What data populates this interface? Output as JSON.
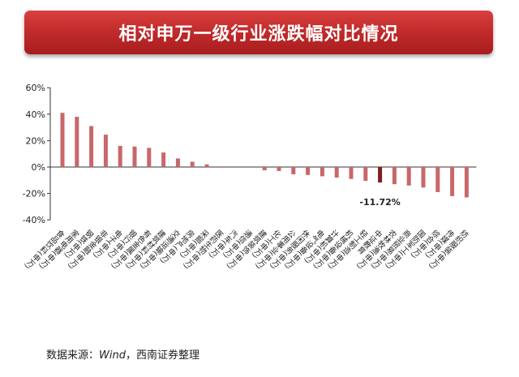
{
  "banner": {
    "title": "相对申万一级行业涨跌幅对比情况"
  },
  "source": {
    "prefix": "数据来源：",
    "italic": "Wind",
    "suffix": "，西南证券整理"
  },
  "annotation": {
    "text": "-11.72%"
  },
  "colors": {
    "bar": "#c8676a",
    "highlight": "#7a1f20",
    "banner": "#c02a2a"
  },
  "chart_data": {
    "type": "bar",
    "title": "相对申万一级行业涨跌幅对比情况",
    "xlabel": "",
    "ylabel": "",
    "ylim": [
      -40,
      60
    ],
    "yticks": [
      "60%",
      "40%",
      "20%",
      "0%",
      "-20%",
      "-40%"
    ],
    "grid": false,
    "highlight_category": "中证教育",
    "categories": [
      "食品饮料(申万)",
      "家用电器(申万)",
      "钢铁(申万)",
      "非银金融(申万)",
      "电子(申万)",
      "银行(申万)",
      "有色金属(申万)",
      "建筑材料(申万)",
      "交通运输(申万)",
      "房地产(申万)",
      "采掘(申万)",
      "医药生物(申万)",
      "汽车(申万)",
      "通信(申万)",
      "建筑装饰(申万)",
      "化工(申万)",
      "公用事业(申万)",
      "休闲服务(申万)",
      "电气设备(申万)",
      "计算机(申万)",
      "机械设备(申万)",
      "轻工制造(申万)",
      "中证教育",
      "农林牧渔(申万)",
      "商业贸易(申万)",
      "国防军工(申万)",
      "综合(申万)",
      "传媒(申万)",
      "纺织服装(申万)"
    ],
    "values": [
      41,
      38,
      31,
      24.5,
      16,
      15.5,
      14.5,
      11,
      6.5,
      4,
      2,
      0.5,
      0,
      0,
      -2.5,
      -3,
      -5.5,
      -6,
      -7,
      -8,
      -9,
      -10.5,
      -11.72,
      -13,
      -14,
      -15.5,
      -19,
      -22,
      -23
    ]
  }
}
